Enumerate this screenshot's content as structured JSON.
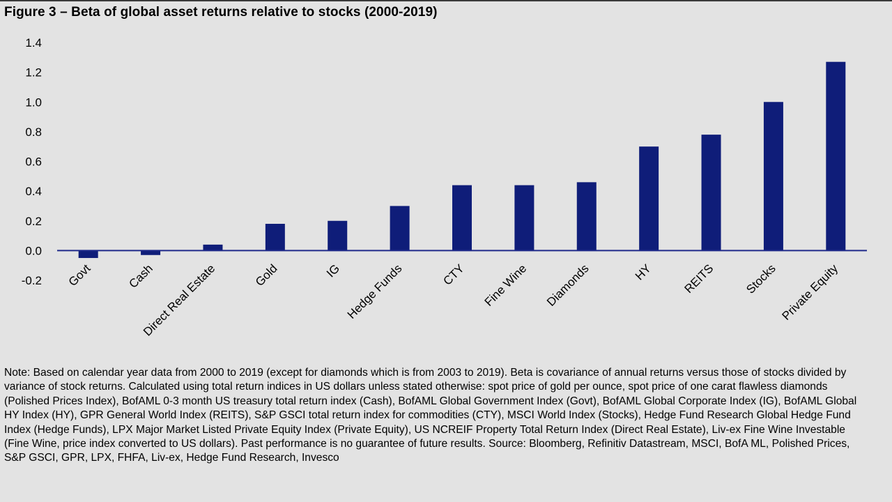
{
  "figure": {
    "title": "Figure 3 – Beta of global asset returns relative to stocks (2000-2019)",
    "note": "Note:  Based on calendar year data from 2000 to 2019 (except for diamonds which is from 2003 to 2019). Beta is covariance of annual returns versus those of stocks divided by variance of stock returns. Calculated using total return indices in US dollars unless stated otherwise: spot price of gold per ounce, spot price of one carat flawless diamonds (Polished Prices Index), BofAML 0-3 month US treasury total return index (Cash), BofAML Global Government Index (Govt), BofAML Global Corporate Index (IG), BofAML Global HY Index (HY), GPR General World Index (REITS), S&P GSCI total return index for commodities (CTY), MSCI World Index (Stocks), Hedge Fund Research Global Hedge Fund Index (Hedge Funds), LPX Major Market Listed Private Equity Index (Private Equity), US NCREIF Property Total Return Index (Direct Real Estate), Liv-ex Fine Wine Investable (Fine Wine, price index converted to US dollars). Past performance is no guarantee of future results. Source: Bloomberg, Refinitiv Datastream, MSCI, BofA ML, Polished Prices, S&P GSCI, GPR, LPX, FHFA, Liv-ex, Hedge Fund Research, Invesco"
  },
  "chart_data": {
    "type": "bar",
    "title": "Figure 3 – Beta of global asset returns relative to stocks (2000-2019)",
    "xlabel": "",
    "ylabel": "",
    "categories": [
      "Govt",
      "Cash",
      "Direct Real Estate",
      "Gold",
      "IG",
      "Hedge Funds",
      "CTY",
      "Fine Wine",
      "Diamonds",
      "HY",
      "REITS",
      "Stocks",
      "Private Equity"
    ],
    "values": [
      -0.05,
      -0.03,
      0.04,
      0.18,
      0.2,
      0.3,
      0.44,
      0.44,
      0.46,
      0.7,
      0.78,
      1.0,
      1.27
    ],
    "ylim": [
      -0.2,
      1.4
    ],
    "yticks": [
      -0.2,
      0.0,
      0.2,
      0.4,
      0.6,
      0.8,
      1.0,
      1.2,
      1.4
    ],
    "ytick_labels": [
      "-0.2",
      "0.0",
      "0.2",
      "0.4",
      "0.6",
      "0.8",
      "1.0",
      "1.2",
      "1.4"
    ],
    "grid": false,
    "legend": "none",
    "bar_color": "#0f1d79",
    "axis_color": "#1f2a8a"
  }
}
